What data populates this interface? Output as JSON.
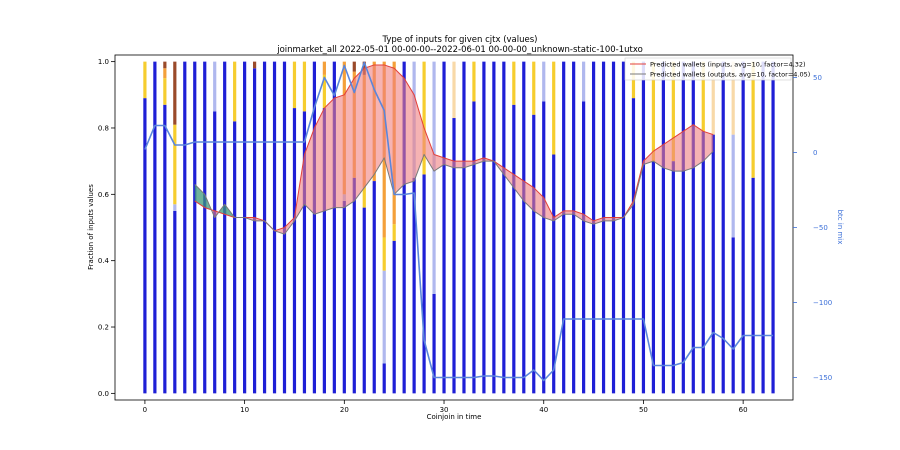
{
  "chart_data": {
    "type": "bar",
    "title": "Type of inputs for given cjtx (values)",
    "subtitle": "joinmarket_all 2022-05-01 00-00-00--2022-06-01 00-00-00_unknown-static-100-1utxo",
    "xlabel": "Coinjoin in time",
    "ylabel": "Fraction of inputs values",
    "right_ylabel": "btc in mix",
    "xlim": [
      -3,
      65
    ],
    "ylim": [
      -0.02,
      1.02
    ],
    "right_ylim": [
      -165,
      65
    ],
    "xticks": [
      0,
      10,
      20,
      30,
      40,
      50,
      60
    ],
    "yticks": [
      0.0,
      0.2,
      0.4,
      0.6,
      0.8,
      1.0
    ],
    "right_yticks": [
      50,
      0,
      -50,
      -100,
      -150
    ],
    "grid": false,
    "legend_position": "top-right",
    "colors": {
      "fresh": "#1f1fd6",
      "remix": "#b0b8ee",
      "other_gold": "#f6cd2e",
      "other_orange": "#f4a03a",
      "other_brown": "#9a4a2a",
      "other_peach": "#f8d9a8",
      "inputs_line": "#e3403a",
      "inputs_fill": "#f08080",
      "outputs_line": "#7a7a7a",
      "outputs_fill": "#3f9a7a",
      "btc_line": "#5a86db"
    },
    "stack_order": [
      "fresh",
      "remix",
      "gold",
      "orange",
      "brown",
      "peach"
    ],
    "bars": [
      {
        "x": 0,
        "fresh": 0.89,
        "gold": 0.11
      },
      {
        "x": 1,
        "fresh": 1.0
      },
      {
        "x": 2,
        "fresh": 0.87,
        "gold": 0.08,
        "orange": 0.03,
        "brown": 0.02
      },
      {
        "x": 3,
        "fresh": 0.55,
        "remix": 0.02,
        "gold": 0.24,
        "brown": 0.19
      },
      {
        "x": 4,
        "fresh": 1.0
      },
      {
        "x": 5,
        "fresh": 1.0
      },
      {
        "x": 6,
        "fresh": 1.0
      },
      {
        "x": 7,
        "fresh": 0.85,
        "remix": 0.15
      },
      {
        "x": 8,
        "fresh": 1.0
      },
      {
        "x": 9,
        "fresh": 0.82,
        "gold": 0.18
      },
      {
        "x": 10,
        "fresh": 1.0
      },
      {
        "x": 11,
        "fresh": 0.98,
        "brown": 0.02
      },
      {
        "x": 12,
        "fresh": 1.0
      },
      {
        "x": 13,
        "fresh": 1.0
      },
      {
        "x": 14,
        "fresh": 1.0
      },
      {
        "x": 15,
        "fresh": 0.86,
        "gold": 0.14
      },
      {
        "x": 16,
        "fresh": 0.85,
        "gold": 0.15
      },
      {
        "x": 17,
        "fresh": 1.0
      },
      {
        "x": 18,
        "fresh": 0.86,
        "orange": 0.04,
        "gold": 0.1
      },
      {
        "x": 19,
        "fresh": 1.0
      },
      {
        "x": 20,
        "fresh": 0.58,
        "remix": 0.02,
        "orange": 0.4
      },
      {
        "x": 21,
        "fresh": 0.65,
        "orange": 0.32,
        "brown": 0.03
      },
      {
        "x": 22,
        "fresh": 0.56,
        "gold": 0.06,
        "orange": 0.34,
        "brown": 0.04
      },
      {
        "x": 23,
        "fresh": 0.64,
        "orange": 0.36
      },
      {
        "x": 24,
        "fresh": 0.09,
        "remix": 0.28,
        "gold": 0.1,
        "orange": 0.53
      },
      {
        "x": 25,
        "fresh": 0.46,
        "gold": 0.05,
        "orange": 0.49
      },
      {
        "x": 26,
        "fresh": 1.0
      },
      {
        "x": 27,
        "fresh": 0.65,
        "remix": 0.35
      },
      {
        "x": 28,
        "fresh": 0.66,
        "gold": 0.34
      },
      {
        "x": 29,
        "fresh": 0.3,
        "remix": 0.7
      },
      {
        "x": 30,
        "fresh": 1.0
      },
      {
        "x": 31,
        "fresh": 0.83,
        "peach": 0.17
      },
      {
        "x": 32,
        "fresh": 1.0
      },
      {
        "x": 33,
        "fresh": 0.88,
        "gold": 0.12
      },
      {
        "x": 34,
        "fresh": 1.0
      },
      {
        "x": 35,
        "fresh": 1.0
      },
      {
        "x": 36,
        "fresh": 1.0
      },
      {
        "x": 37,
        "fresh": 0.87,
        "gold": 0.13
      },
      {
        "x": 38,
        "fresh": 1.0
      },
      {
        "x": 39,
        "fresh": 0.84,
        "gold": 0.16
      },
      {
        "x": 40,
        "fresh": 0.88,
        "remix": 0.12
      },
      {
        "x": 41,
        "fresh": 0.72,
        "gold": 0.28
      },
      {
        "x": 42,
        "fresh": 1.0
      },
      {
        "x": 43,
        "fresh": 1.0
      },
      {
        "x": 44,
        "fresh": 0.88,
        "remix": 0.12
      },
      {
        "x": 45,
        "fresh": 1.0
      },
      {
        "x": 46,
        "fresh": 1.0
      },
      {
        "x": 47,
        "fresh": 1.0
      },
      {
        "x": 48,
        "fresh": 1.0
      },
      {
        "x": 49,
        "fresh": 0.89,
        "gold": 0.11
      },
      {
        "x": 50,
        "fresh": 1.0
      },
      {
        "x": 51,
        "fresh": 0.7,
        "gold": 0.3
      },
      {
        "x": 52,
        "fresh": 1.0
      },
      {
        "x": 53,
        "fresh": 0.7,
        "gold": 0.3
      },
      {
        "x": 54,
        "fresh": 1.0
      },
      {
        "x": 55,
        "fresh": 1.0
      },
      {
        "x": 56,
        "fresh": 0.79,
        "gold": 0.21
      },
      {
        "x": 57,
        "fresh": 0.78,
        "peach": 0.22
      },
      {
        "x": 58,
        "fresh": 1.0
      },
      {
        "x": 59,
        "fresh": 0.47,
        "remix": 0.31,
        "peach": 0.22
      },
      {
        "x": 60,
        "fresh": 1.0
      },
      {
        "x": 61,
        "fresh": 0.65,
        "gold": 0.35
      },
      {
        "x": 62,
        "fresh": 1.0
      },
      {
        "x": 63,
        "fresh": 1.0
      }
    ],
    "series": [
      {
        "name": "Predicted wallets (inputs, avg=10, factor=4.32)",
        "axis": "left",
        "x": [
          5,
          6,
          7,
          8,
          9,
          10,
          11,
          12,
          13,
          14,
          15,
          16,
          17,
          18,
          19,
          20,
          21,
          22,
          23,
          24,
          25,
          26,
          27,
          28,
          29,
          30,
          31,
          32,
          33,
          34,
          35,
          36,
          37,
          38,
          39,
          40,
          41,
          42,
          43,
          44,
          45,
          46,
          47,
          48,
          49,
          50,
          51,
          52,
          53,
          54,
          55,
          56,
          57
        ],
        "values": [
          0.58,
          0.56,
          0.55,
          0.54,
          0.53,
          0.53,
          0.53,
          0.52,
          0.49,
          0.5,
          0.53,
          0.72,
          0.8,
          0.86,
          0.89,
          0.9,
          0.95,
          0.98,
          0.99,
          0.99,
          0.98,
          0.95,
          0.9,
          0.8,
          0.72,
          0.71,
          0.7,
          0.7,
          0.7,
          0.71,
          0.7,
          0.68,
          0.66,
          0.64,
          0.62,
          0.59,
          0.53,
          0.55,
          0.55,
          0.54,
          0.52,
          0.53,
          0.53,
          0.53,
          0.58,
          0.7,
          0.73,
          0.75,
          0.77,
          0.79,
          0.81,
          0.79,
          0.78
        ]
      },
      {
        "name": "Predicted wallets (outputs, avg=10, factor=4.05)",
        "axis": "left",
        "x": [
          5,
          6,
          7,
          8,
          9,
          10,
          11,
          12,
          13,
          14,
          15,
          16,
          17,
          18,
          19,
          20,
          21,
          22,
          23,
          24,
          25,
          26,
          27,
          28,
          29,
          30,
          31,
          32,
          33,
          34,
          35,
          36,
          37,
          38,
          39,
          40,
          41,
          42,
          43,
          44,
          45,
          46,
          47,
          48,
          49,
          50,
          51,
          52,
          53,
          54,
          55,
          56,
          57
        ],
        "values": [
          0.63,
          0.6,
          0.53,
          0.57,
          0.53,
          0.53,
          0.52,
          0.52,
          0.49,
          0.48,
          0.52,
          0.57,
          0.54,
          0.55,
          0.56,
          0.56,
          0.58,
          0.62,
          0.66,
          0.71,
          0.6,
          0.63,
          0.64,
          0.72,
          0.67,
          0.69,
          0.68,
          0.68,
          0.69,
          0.7,
          0.7,
          0.66,
          0.62,
          0.58,
          0.55,
          0.53,
          0.52,
          0.54,
          0.54,
          0.52,
          0.51,
          0.52,
          0.52,
          0.53,
          0.57,
          0.69,
          0.7,
          0.68,
          0.67,
          0.67,
          0.68,
          0.7,
          0.73
        ]
      },
      {
        "name": "btc in mix",
        "axis": "right",
        "x": [
          0,
          1,
          2,
          3,
          4,
          5,
          6,
          7,
          8,
          9,
          10,
          11,
          12,
          13,
          14,
          15,
          16,
          17,
          18,
          19,
          20,
          21,
          22,
          23,
          24,
          25,
          26,
          27,
          28,
          29,
          30,
          31,
          32,
          33,
          34,
          35,
          36,
          37,
          38,
          39,
          40,
          41,
          42,
          43,
          44,
          45,
          46,
          47,
          48,
          49,
          50,
          51,
          52,
          53,
          54,
          55,
          56,
          57,
          58,
          59,
          60,
          61,
          62,
          63
        ],
        "values": [
          2,
          18,
          18,
          5,
          5,
          7,
          7,
          7,
          7,
          7,
          7,
          7,
          7,
          7,
          7,
          7,
          7,
          30,
          50,
          38,
          58,
          40,
          60,
          42,
          28,
          -28,
          -28,
          -27,
          -125,
          -150,
          -150,
          -150,
          -150,
          -150,
          -149,
          -149,
          -150,
          -150,
          -150,
          -145,
          -152,
          -145,
          -111,
          -111,
          -111,
          -111,
          -111,
          -111,
          -111,
          -111,
          -111,
          -142,
          -142,
          -142,
          -140,
          -130,
          -130,
          -120,
          -124,
          -131,
          -122,
          -122,
          -122,
          -122
        ]
      }
    ],
    "legend": [
      "Predicted wallets (inputs, avg=10, factor=4.32)",
      "Predicted wallets (outputs, avg=10, factor=4.05)"
    ]
  }
}
